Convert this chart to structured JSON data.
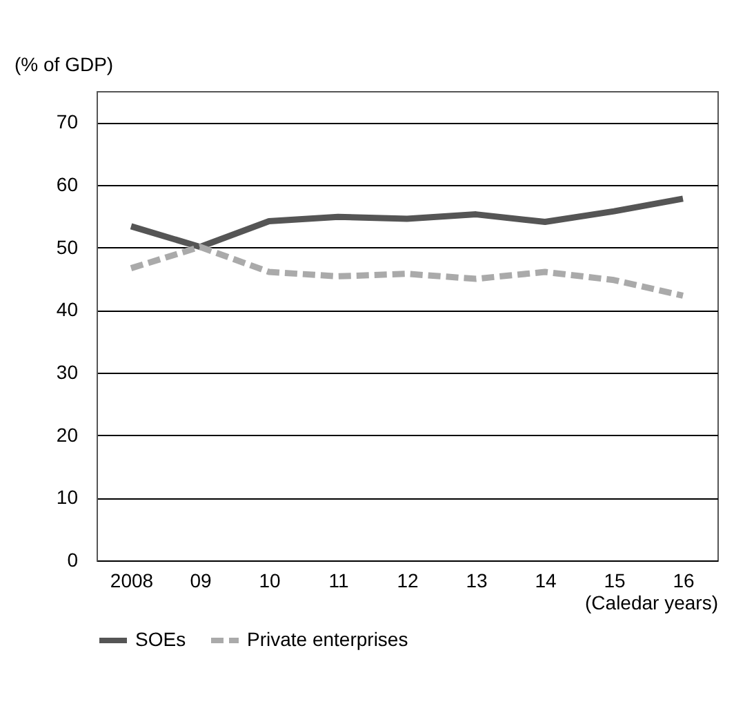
{
  "chart_data": {
    "type": "line",
    "ylabel": "(% of GDP)",
    "xlabel": "(Caledar years)",
    "categories": [
      "2008",
      "09",
      "10",
      "11",
      "12",
      "13",
      "14",
      "15",
      "16"
    ],
    "series": [
      {
        "name": "SOEs",
        "color": "#555555",
        "line_style": "solid",
        "values": [
          53.4,
          50.1,
          54.2,
          54.9,
          54.6,
          55.3,
          54.1,
          55.8,
          57.8
        ]
      },
      {
        "name": "Private enterprises",
        "color": "#aaaaaa",
        "line_style": "dashed",
        "values": [
          46.7,
          50.1,
          46.1,
          45.4,
          45.8,
          45.0,
          46.1,
          44.8,
          42.3
        ]
      }
    ],
    "ylim": [
      0,
      75
    ],
    "yticks": [
      0,
      10,
      20,
      30,
      40,
      50,
      60,
      70
    ],
    "grid": "y",
    "legend": "bottom",
    "marker": "none"
  }
}
